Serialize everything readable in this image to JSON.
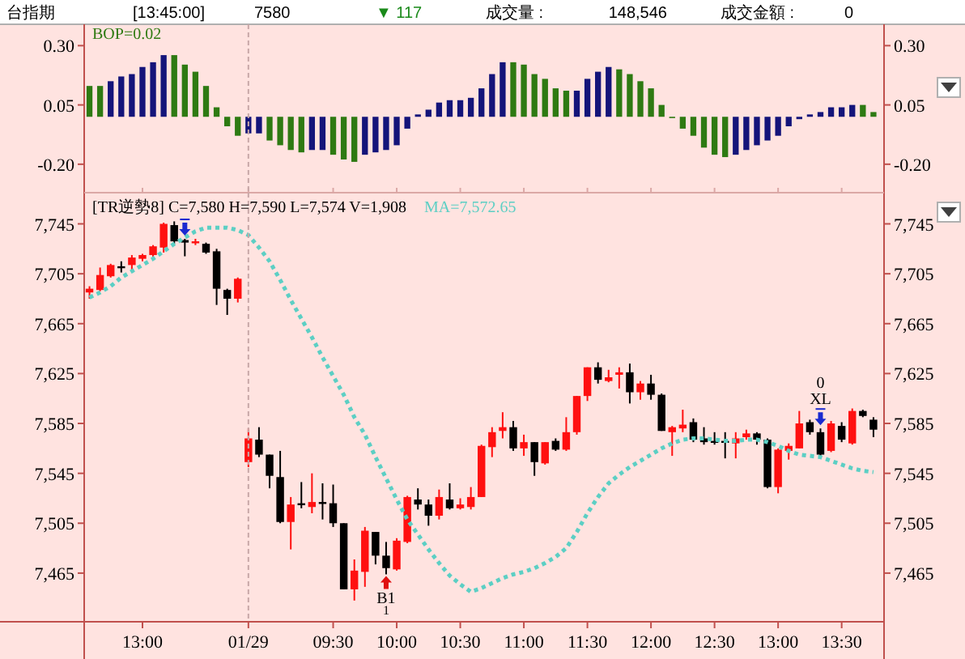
{
  "chart_data": [
    {
      "type": "bar",
      "categories": [
        null,
        null,
        null,
        null,
        null,
        "13:00",
        null,
        null,
        null,
        null,
        null,
        null,
        null,
        null,
        null,
        "01/29",
        null,
        null,
        null,
        null,
        null,
        null,
        null,
        "09:30",
        null,
        null,
        null,
        null,
        null,
        "10:00",
        null,
        null,
        null,
        null,
        null,
        "10:30",
        null,
        null,
        null,
        null,
        null,
        "11:00",
        null,
        null,
        null,
        null,
        null,
        "11:30",
        null,
        null,
        null,
        null,
        null,
        "12:00",
        null,
        null,
        null,
        null,
        null,
        "12:30",
        null,
        null,
        null,
        null,
        null,
        "13:00",
        null,
        null,
        null,
        null,
        null,
        "13:30",
        null,
        null,
        null
      ],
      "values": [
        0.13,
        0.13,
        0.15,
        0.17,
        0.18,
        0.21,
        0.23,
        0.26,
        0.26,
        0.22,
        0.19,
        0.13,
        0.04,
        -0.04,
        -0.08,
        -0.07,
        -0.07,
        -0.1,
        -0.12,
        -0.14,
        -0.15,
        -0.14,
        -0.14,
        -0.16,
        -0.18,
        -0.19,
        -0.16,
        -0.15,
        -0.14,
        -0.12,
        -0.05,
        0.01,
        0.03,
        0.06,
        0.07,
        0.07,
        0.08,
        0.12,
        0.18,
        0.23,
        0.23,
        0.22,
        0.18,
        0.16,
        0.12,
        0.11,
        0.11,
        0.16,
        0.19,
        0.21,
        0.2,
        0.18,
        0.15,
        0.12,
        0.05,
        0.0,
        -0.05,
        -0.08,
        -0.13,
        -0.16,
        -0.17,
        -0.16,
        -0.14,
        -0.12,
        -0.1,
        -0.08,
        -0.04,
        -0.01,
        0.01,
        0.02,
        0.04,
        0.04,
        0.05,
        0.05,
        0.02
      ],
      "colors": [
        "#2e7a12",
        "#2e7a12",
        "#14147a",
        "#14147a",
        "#14147a",
        "#14147a",
        "#14147a",
        "#14147a",
        "#2e7a12",
        "#2e7a12",
        "#2e7a12",
        "#2e7a12",
        "#2e7a12",
        "#2e7a12",
        "#2e7a12",
        "#14147a",
        "#14147a",
        "#2e7a12",
        "#2e7a12",
        "#2e7a12",
        "#2e7a12",
        "#14147a",
        "#14147a",
        "#2e7a12",
        "#2e7a12",
        "#2e7a12",
        "#14147a",
        "#14147a",
        "#14147a",
        "#14147a",
        "#14147a",
        "#14147a",
        "#14147a",
        "#14147a",
        "#14147a",
        "#14147a",
        "#14147a",
        "#14147a",
        "#14147a",
        "#14147a",
        "#2e7a12",
        "#2e7a12",
        "#2e7a12",
        "#2e7a12",
        "#2e7a12",
        "#2e7a12",
        "#14147a",
        "#14147a",
        "#14147a",
        "#14147a",
        "#2e7a12",
        "#2e7a12",
        "#2e7a12",
        "#2e7a12",
        "#2e7a12",
        "#2e7a12",
        "#2e7a12",
        "#2e7a12",
        "#2e7a12",
        "#2e7a12",
        "#2e7a12",
        "#14147a",
        "#14147a",
        "#14147a",
        "#14147a",
        "#14147a",
        "#14147a",
        "#14147a",
        "#14147a",
        "#14147a",
        "#14147a",
        "#14147a",
        "#14147a",
        "#2e7a12",
        "#2e7a12"
      ],
      "ylim": [
        -0.32,
        0.39
      ],
      "yticks": [
        {
          "value": 0.3,
          "label": "0.30"
        },
        {
          "value": 0.05,
          "label": "0.05"
        },
        {
          "value": -0.2,
          "label": "-0.20"
        }
      ],
      "y2lim": [
        -0.32,
        0.39
      ],
      "y2ticks": [
        {
          "value": 0.3,
          "label": "0.30"
        },
        {
          "value": 0.05,
          "label": "0.05"
        },
        {
          "value": -0.2,
          "label": "-0.20"
        }
      ],
      "tick_labels": "y",
      "ref_lines": [
        {
          "axis": "x",
          "value": "01/29",
          "color": "#c8a8a8",
          "line_style": "dashed"
        }
      ],
      "annotations": [
        "台指期",
        "[13:45:00]",
        "7580",
        "▼ 117",
        "成交量 :",
        "148,546",
        "成交金額 :",
        "0",
        "BOP=0.02"
      ]
    },
    {
      "type": "candlestick",
      "categories": [
        null,
        null,
        null,
        null,
        null,
        "13:00",
        null,
        null,
        null,
        null,
        null,
        null,
        null,
        null,
        null,
        "01/29",
        null,
        null,
        null,
        null,
        null,
        null,
        null,
        "09:30",
        null,
        null,
        null,
        null,
        null,
        "10:00",
        null,
        null,
        null,
        null,
        null,
        "10:30",
        null,
        null,
        null,
        null,
        null,
        "11:00",
        null,
        null,
        null,
        null,
        null,
        "11:30",
        null,
        null,
        null,
        null,
        null,
        "12:00",
        null,
        null,
        null,
        null,
        null,
        "12:30",
        null,
        null,
        null,
        null,
        null,
        "13:00",
        null,
        null,
        null,
        null,
        null,
        "13:30",
        null,
        null,
        null
      ],
      "ohlc": [
        [
          7690,
          7695,
          7685,
          7693
        ],
        [
          7692,
          7710,
          7691,
          7704
        ],
        [
          7703,
          7713,
          7702,
          7712
        ],
        [
          7711,
          7715,
          7706,
          7710
        ],
        [
          7712,
          7720,
          7707,
          7718
        ],
        [
          7717,
          7721,
          7715,
          7720
        ],
        [
          7720,
          7728,
          7717,
          7727
        ],
        [
          7726,
          7746,
          7722,
          7745
        ],
        [
          7744,
          7747,
          7729,
          7731
        ],
        [
          7732,
          7733,
          7719,
          7730
        ],
        [
          7730,
          7733,
          7728,
          7731
        ],
        [
          7729,
          7730,
          7721,
          7722
        ],
        [
          7723,
          7725,
          7680,
          7693
        ],
        [
          7692,
          7693,
          7672,
          7685
        ],
        [
          7685,
          7702,
          7682,
          7701
        ],
        [
          7554,
          7581,
          7550,
          7573
        ],
        [
          7572,
          7582,
          7558,
          7560
        ],
        [
          7560,
          7560,
          7533,
          7543
        ],
        [
          7542,
          7563,
          7505,
          7506
        ],
        [
          7506,
          7526,
          7484,
          7520
        ],
        [
          7521,
          7538,
          7517,
          7520
        ],
        [
          7518,
          7545,
          7513,
          7522
        ],
        [
          7522,
          7537,
          7508,
          7521
        ],
        [
          7521,
          7536,
          7502,
          7505
        ],
        [
          7505,
          7505,
          7452,
          7452
        ],
        [
          7452,
          7476,
          7443,
          7467
        ],
        [
          7466,
          7502,
          7454,
          7499
        ],
        [
          7498,
          7498,
          7472,
          7479
        ],
        [
          7479,
          7490,
          7464,
          7469
        ],
        [
          7468,
          7493,
          7467,
          7491
        ],
        [
          7490,
          7527,
          7489,
          7526
        ],
        [
          7524,
          7533,
          7516,
          7520
        ],
        [
          7520,
          7524,
          7503,
          7511
        ],
        [
          7511,
          7532,
          7508,
          7526
        ],
        [
          7524,
          7537,
          7516,
          7517
        ],
        [
          7517,
          7525,
          7516,
          7520
        ],
        [
          7518,
          7534,
          7516,
          7526
        ],
        [
          7526,
          7568,
          7526,
          7567
        ],
        [
          7566,
          7582,
          7558,
          7578
        ],
        [
          7579,
          7594,
          7573,
          7582
        ],
        [
          7582,
          7587,
          7563,
          7565
        ],
        [
          7565,
          7576,
          7559,
          7570
        ],
        [
          7570,
          7570,
          7543,
          7554
        ],
        [
          7553,
          7570,
          7552,
          7570
        ],
        [
          7571,
          7573,
          7563,
          7564
        ],
        [
          7564,
          7590,
          7563,
          7578
        ],
        [
          7578,
          7607,
          7576,
          7607
        ],
        [
          7607,
          7630,
          7603,
          7630
        ],
        [
          7630,
          7634,
          7617,
          7620
        ],
        [
          7619,
          7628,
          7618,
          7622
        ],
        [
          7624,
          7630,
          7613,
          7626
        ],
        [
          7626,
          7633,
          7601,
          7610
        ],
        [
          7610,
          7619,
          7604,
          7617
        ],
        [
          7617,
          7624,
          7604,
          7608
        ],
        [
          7608,
          7609,
          7579,
          7579
        ],
        [
          7578,
          7583,
          7559,
          7582
        ],
        [
          7581,
          7596,
          7578,
          7584
        ],
        [
          7586,
          7589,
          7570,
          7572
        ],
        [
          7573,
          7582,
          7568,
          7570
        ],
        [
          7571,
          7578,
          7568,
          7570
        ],
        [
          7571,
          7578,
          7557,
          7570
        ],
        [
          7569,
          7578,
          7557,
          7573
        ],
        [
          7574,
          7580,
          7572,
          7577
        ],
        [
          7577,
          7578,
          7568,
          7572
        ],
        [
          7572,
          7573,
          7533,
          7534
        ],
        [
          7534,
          7565,
          7529,
          7564
        ],
        [
          7563,
          7569,
          7556,
          7567
        ],
        [
          7565,
          7595,
          7565,
          7585
        ],
        [
          7586,
          7588,
          7576,
          7578
        ],
        [
          7578,
          7581,
          7558,
          7560
        ],
        [
          7563,
          7587,
          7562,
          7585
        ],
        [
          7583,
          7586,
          7570,
          7572
        ],
        [
          7569,
          7597,
          7568,
          7595
        ],
        [
          7595,
          7596,
          7590,
          7591
        ],
        [
          7588,
          7590,
          7574,
          7580
        ]
      ],
      "colors": [
        "#ff1010",
        "#ff1010",
        "#ff1010",
        "#000000",
        "#ff1010",
        "#ff1010",
        "#ff1010",
        "#ff1010",
        "#000000",
        "#000000",
        "#ff1010",
        "#000000",
        "#000000",
        "#000000",
        "#ff1010",
        "#ff1010",
        "#000000",
        "#000000",
        "#000000",
        "#ff1010",
        "#000000",
        "#ff1010",
        "#000000",
        "#000000",
        "#000000",
        "#ff1010",
        "#ff1010",
        "#000000",
        "#000000",
        "#ff1010",
        "#ff1010",
        "#000000",
        "#000000",
        "#ff1010",
        "#000000",
        "#ff1010",
        "#ff1010",
        "#ff1010",
        "#ff1010",
        "#ff1010",
        "#000000",
        "#ff1010",
        "#000000",
        "#ff1010",
        "#000000",
        "#ff1010",
        "#ff1010",
        "#ff1010",
        "#000000",
        "#ff1010",
        "#ff1010",
        "#000000",
        "#ff1010",
        "#000000",
        "#000000",
        "#ff1010",
        "#ff1010",
        "#000000",
        "#000000",
        "#000000",
        "#000000",
        "#ff1010",
        "#ff1010",
        "#000000",
        "#000000",
        "#ff1010",
        "#ff1010",
        "#ff1010",
        "#000000",
        "#000000",
        "#ff1010",
        "#000000",
        "#ff1010",
        "#000000",
        "#000000"
      ],
      "series": [
        {
          "name": "MA=7,572.65",
          "type": "line",
          "color": "#5ccfc4",
          "line_style": "dotted",
          "values": [
            7686,
            7690,
            7695,
            7702,
            7707,
            7712,
            7717,
            7723,
            7729,
            7734,
            7739,
            7742,
            7742,
            7742,
            7740,
            7736,
            7726,
            7715,
            7700,
            7684,
            7669,
            7654,
            7638,
            7623,
            7608,
            7590,
            7576,
            7558,
            7541,
            7524,
            7508,
            7496,
            7484,
            7473,
            7463,
            7456,
            7450,
            7453,
            7457,
            7461,
            7464,
            7466,
            7469,
            7473,
            7478,
            7485,
            7498,
            7513,
            7526,
            7537,
            7544,
            7550,
            7555,
            7560,
            7565,
            7569,
            7572,
            7573,
            7573,
            7572,
            7571,
            7571,
            7572,
            7572,
            7570,
            7567,
            7563,
            7560,
            7559,
            7558,
            7555,
            7552,
            7549,
            7547,
            7546
          ]
        }
      ],
      "ylim": [
        7426,
        7770
      ],
      "yticks": [
        {
          "value": 7745,
          "label": "7,745"
        },
        {
          "value": 7705,
          "label": "7,705"
        },
        {
          "value": 7665,
          "label": "7,665"
        },
        {
          "value": 7625,
          "label": "7,625"
        },
        {
          "value": 7585,
          "label": "7,585"
        },
        {
          "value": 7545,
          "label": "7,545"
        },
        {
          "value": 7505,
          "label": "7,505"
        },
        {
          "value": 7465,
          "label": "7,465"
        }
      ],
      "y2lim": [
        7426,
        7770
      ],
      "y2ticks": [
        {
          "value": 7745,
          "label": "7,745"
        },
        {
          "value": 7705,
          "label": "7,705"
        },
        {
          "value": 7665,
          "label": "7,665"
        },
        {
          "value": 7625,
          "label": "7,625"
        },
        {
          "value": 7585,
          "label": "7,585"
        },
        {
          "value": 7545,
          "label": "7,545"
        },
        {
          "value": 7505,
          "label": "7,505"
        },
        {
          "value": 7465,
          "label": "7,465"
        }
      ],
      "ref_lines": [
        {
          "axis": "x",
          "value": "01/29",
          "color": "#c8a8a8",
          "line_style": "dashed"
        }
      ],
      "annotations": [
        "[TR逆勢8]  C=7,580 H=7,590 L=7,574 V=1,908",
        "B1",
        "1",
        "0",
        "XL"
      ]
    }
  ]
}
